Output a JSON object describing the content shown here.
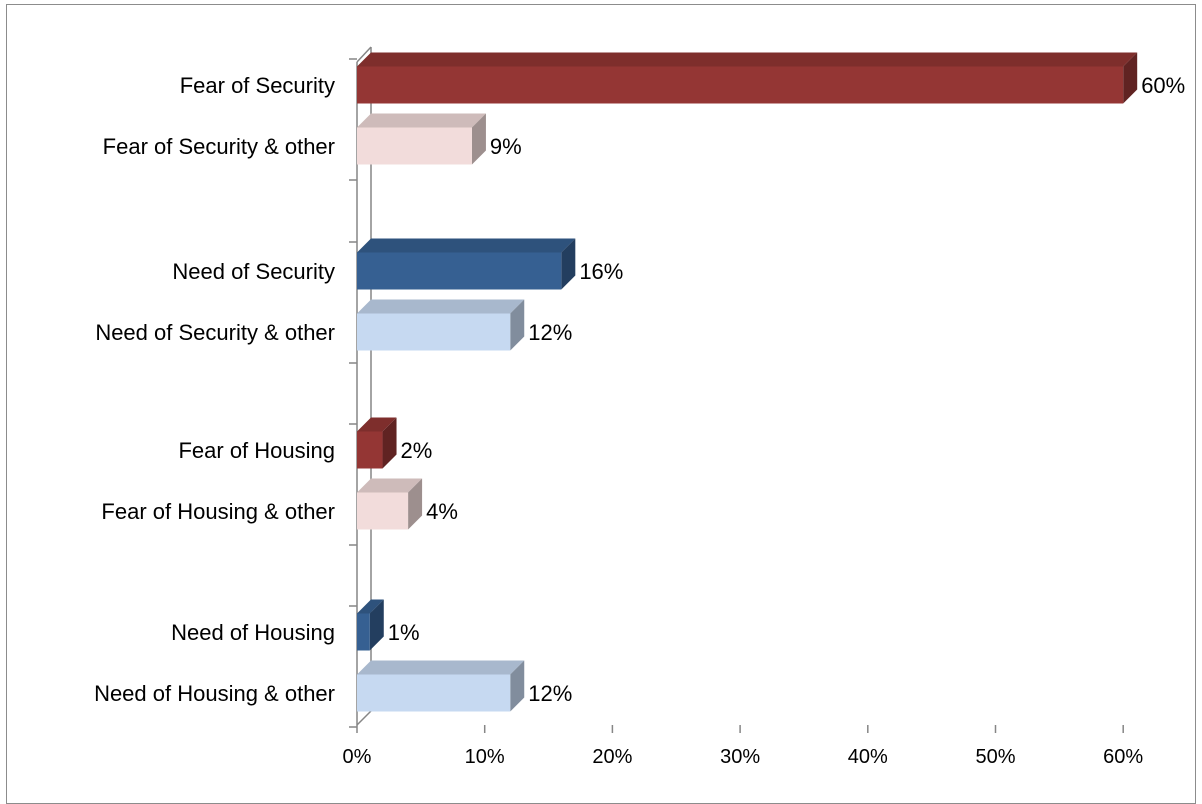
{
  "chart_data": {
    "type": "bar",
    "orientation": "horizontal",
    "style": "3d",
    "title": "",
    "xlabel": "",
    "ylabel": "",
    "xlim": [
      0,
      60
    ],
    "x_ticks": [
      "0%",
      "10%",
      "20%",
      "30%",
      "40%",
      "50%",
      "60%"
    ],
    "value_suffix": "%",
    "grid": false,
    "legend": "none",
    "categories": [
      "Fear of Security",
      "Fear of Security & other",
      "Need of Security",
      "Need of Security & other",
      "Fear of Housing",
      "Fear of Housing & other",
      "Need of Housing",
      "Need of Housing & other"
    ],
    "values": [
      60,
      9,
      16,
      12,
      2,
      4,
      1,
      12
    ],
    "data_labels": [
      "60%",
      "9%",
      "16%",
      "12%",
      "2%",
      "4%",
      "1%",
      "12%"
    ],
    "bar_colors": [
      "#943634",
      "#f2dcdb",
      "#366092",
      "#c6d9f1",
      "#943634",
      "#f2dcdb",
      "#366092",
      "#c6d9f1"
    ]
  }
}
